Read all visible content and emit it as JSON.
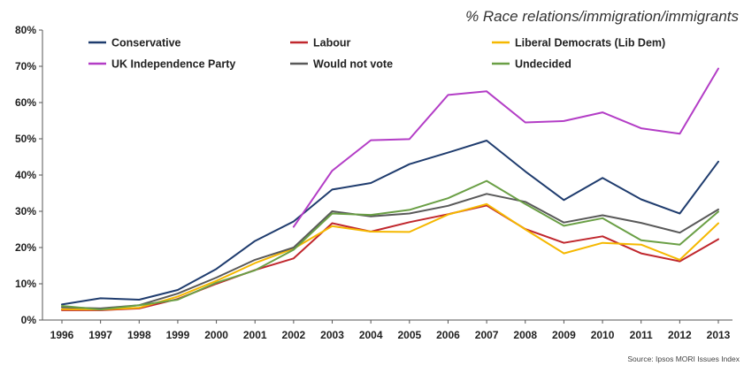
{
  "chart_data": {
    "type": "line",
    "title": "% Race relations/immigration/immigrants",
    "source": "Source: Ipsos MORI Issues Index",
    "xlabel": "",
    "ylabel": "",
    "x": [
      "1996",
      "1997",
      "1998",
      "1999",
      "2000",
      "2001",
      "2002",
      "2003",
      "2004",
      "2005",
      "2006",
      "2007",
      "2008",
      "2009",
      "2010",
      "2011",
      "2012",
      "2013"
    ],
    "ylim": [
      0,
      80
    ],
    "yticks": [
      "0%",
      "10%",
      "20%",
      "30%",
      "40%",
      "50%",
      "60%",
      "70%",
      "80%"
    ],
    "grid": false,
    "legend_position": "top-left",
    "series": [
      {
        "name": "Conservative",
        "color": "#1f3c6e",
        "values": [
          4.3,
          6.0,
          5.6,
          8.3,
          14.1,
          21.8,
          27.2,
          36.0,
          37.8,
          43.0,
          46.2,
          49.5,
          41.0,
          33.1,
          39.2,
          33.3,
          29.4,
          43.7
        ]
      },
      {
        "name": "Labour",
        "color": "#c0272d",
        "values": [
          2.7,
          2.7,
          3.2,
          5.8,
          10.0,
          13.8,
          17.0,
          26.7,
          24.4,
          27.0,
          29.2,
          31.6,
          25.1,
          21.3,
          23.1,
          18.4,
          16.2,
          22.3
        ]
      },
      {
        "name": "Liberal Democrats (Lib Dem)",
        "color": "#f5b800",
        "values": [
          3.0,
          2.9,
          3.4,
          6.5,
          10.8,
          15.7,
          19.7,
          25.9,
          24.4,
          24.3,
          29.1,
          32.0,
          25.0,
          18.4,
          21.3,
          20.8,
          16.6,
          26.7
        ]
      },
      {
        "name": "UK Independence Party",
        "color": "#b33dc6",
        "values": [
          null,
          null,
          null,
          null,
          null,
          null,
          25.7,
          41.2,
          49.6,
          49.9,
          62.1,
          63.1,
          54.5,
          54.9,
          57.3,
          52.9,
          51.4,
          69.4
        ]
      },
      {
        "name": "Would not vote",
        "color": "#595959",
        "values": [
          3.5,
          3.2,
          4.1,
          7.3,
          11.7,
          16.6,
          20.0,
          30.0,
          28.6,
          29.4,
          31.5,
          34.8,
          32.6,
          26.9,
          28.9,
          26.8,
          24.1,
          30.5
        ]
      },
      {
        "name": "Undecided",
        "color": "#6a9f45",
        "values": [
          3.9,
          2.9,
          4.1,
          5.6,
          10.3,
          13.7,
          19.4,
          29.4,
          29.0,
          30.4,
          33.6,
          38.4,
          32.0,
          26.0,
          28.1,
          22.0,
          20.8,
          29.9
        ]
      }
    ]
  }
}
